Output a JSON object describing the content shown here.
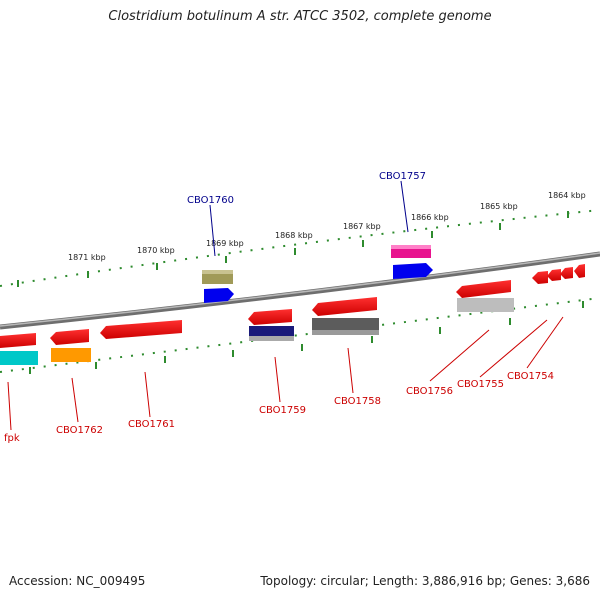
{
  "title": "Clostridium botulinum A str. ATCC 3502, complete genome",
  "footer": {
    "accession": "Accession: NC_009495",
    "summary": "Topology: circular; Length: 3,886,916 bp; Genes: 3,686"
  },
  "colors": {
    "backbone": "#808080",
    "forward_label": "#00008b",
    "reverse_label": "#cc0000",
    "tick": "#2e8b2e"
  },
  "tick_labels": [
    "1871 kbp",
    "1870 kbp",
    "1869 kbp",
    "1868 kbp",
    "1867 kbp",
    "1866 kbp",
    "1865 kbp",
    "1864 kbp"
  ],
  "gene_labels": {
    "forward": [
      "CBO1760",
      "CBO1757"
    ],
    "reverse": [
      "fpk",
      "CBO1762",
      "CBO1761",
      "CBO1759",
      "CBO1758",
      "CBO1756",
      "CBO1755",
      "CBO1754"
    ]
  }
}
